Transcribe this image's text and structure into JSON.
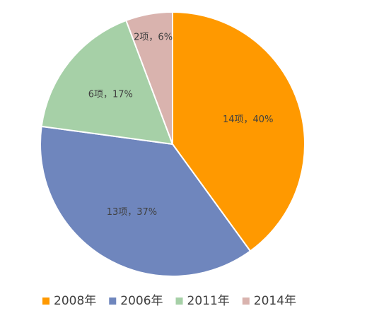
{
  "chart_data": {
    "type": "pie",
    "series": [
      {
        "name": "2008年",
        "value": 14,
        "percent": 40,
        "label": "14项，40%",
        "color": "#FF9900"
      },
      {
        "name": "2006年",
        "value": 13,
        "percent": 37,
        "label": "13项，37%",
        "color": "#6F86BD"
      },
      {
        "name": "2011年",
        "value": 6,
        "percent": 17,
        "label": "6项，17%",
        "color": "#A6D0A7"
      },
      {
        "name": "2014年",
        "value": 2,
        "percent": 6,
        "label": "2项，6%",
        "color": "#D9B3AE"
      }
    ],
    "legend_position": "bottom"
  }
}
